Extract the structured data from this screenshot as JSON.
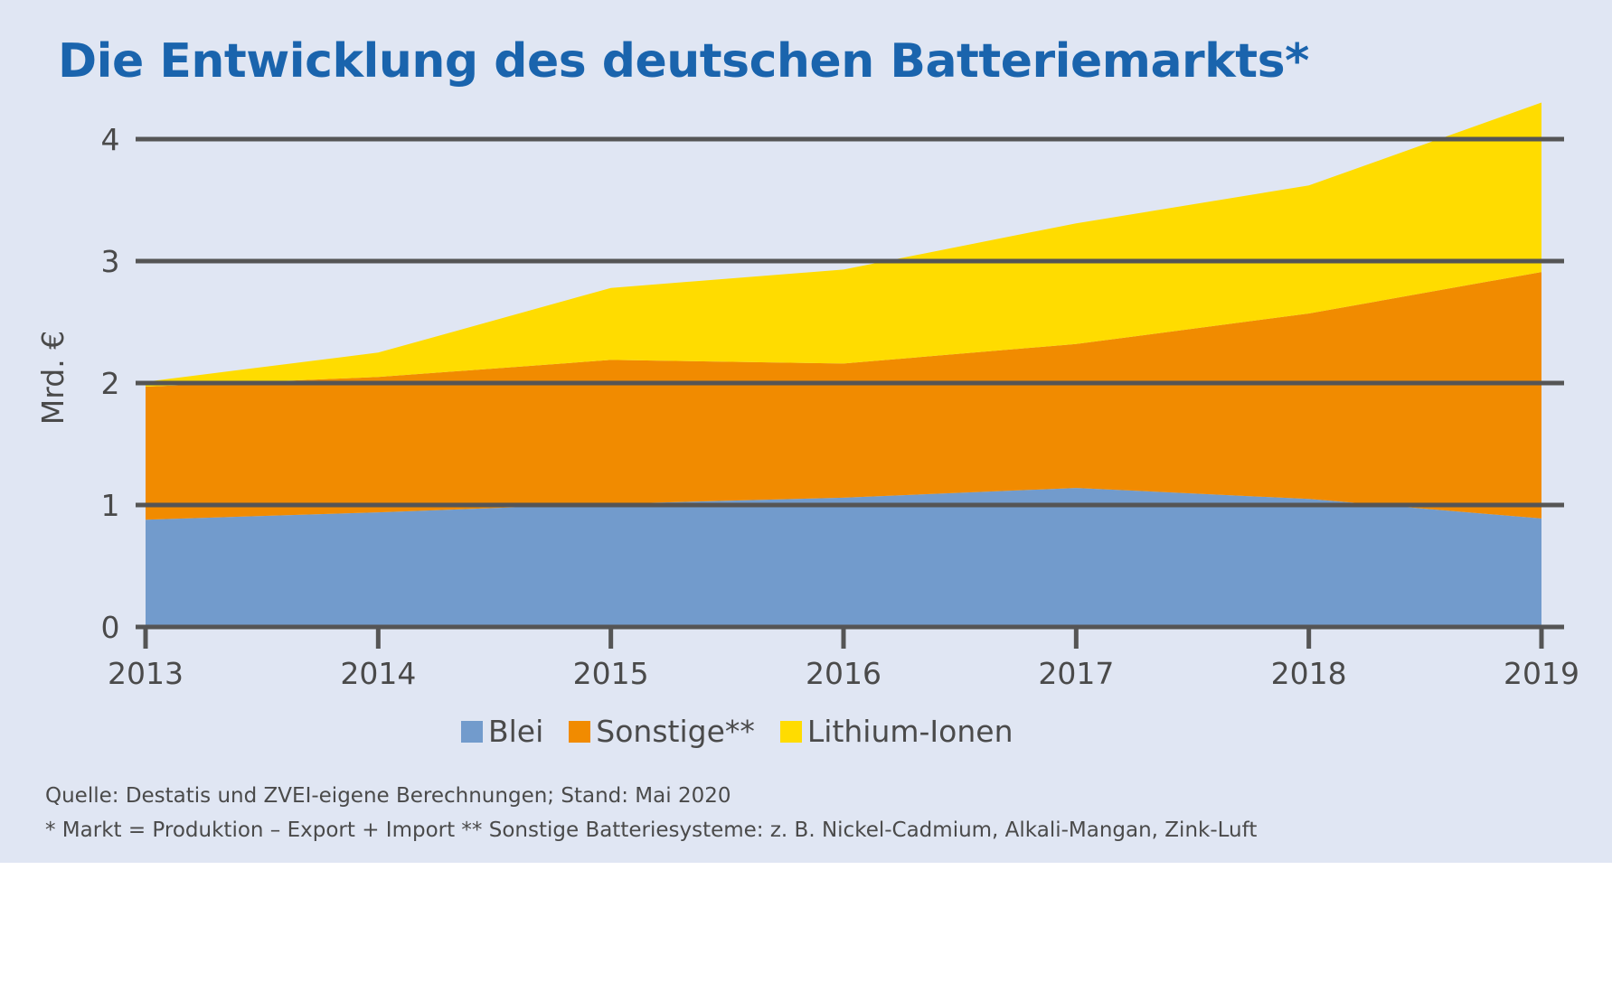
{
  "title": "Die Entwicklung des deutschen Batteriemarkts*",
  "colors": {
    "background": "#e0e6f3",
    "title": "#1a64ad",
    "blei": "#729bcc",
    "sonstige": "#f18b00",
    "lithium": "#ffdc00",
    "gridline": "#555555",
    "text": "#4a4a4a"
  },
  "chart_data": {
    "type": "area",
    "stacked": true,
    "x": [
      "2013",
      "2014",
      "2015",
      "2016",
      "2017",
      "2018",
      "2019"
    ],
    "series": [
      {
        "name": "Blei",
        "values": [
          0.88,
          0.94,
          1.01,
          1.06,
          1.14,
          1.05,
          0.89
        ],
        "color": "#729bcc"
      },
      {
        "name": "Sonstige**",
        "values": [
          1.09,
          1.11,
          1.18,
          1.1,
          1.18,
          1.52,
          2.02
        ],
        "color": "#f18b00"
      },
      {
        "name": "Lithium-Ionen",
        "values": [
          0.04,
          0.2,
          0.59,
          0.77,
          0.99,
          1.05,
          1.39
        ],
        "color": "#ffdc00"
      }
    ],
    "ylabel": "Mrd. €",
    "yticks": [
      0,
      1,
      2,
      3,
      4
    ],
    "ylim": [
      0,
      4.3
    ],
    "grid": true,
    "legend_position": "bottom"
  },
  "notes": {
    "source": "Quelle: Destatis und ZVEI-eigene Berechnungen; Stand: Mai 2020",
    "footnote": "* Markt = Produktion – Export + Import  ** Sonstige Batteriesysteme: z. B. Nickel-Cadmium, Alkali-Mangan, Zink-Luft"
  }
}
